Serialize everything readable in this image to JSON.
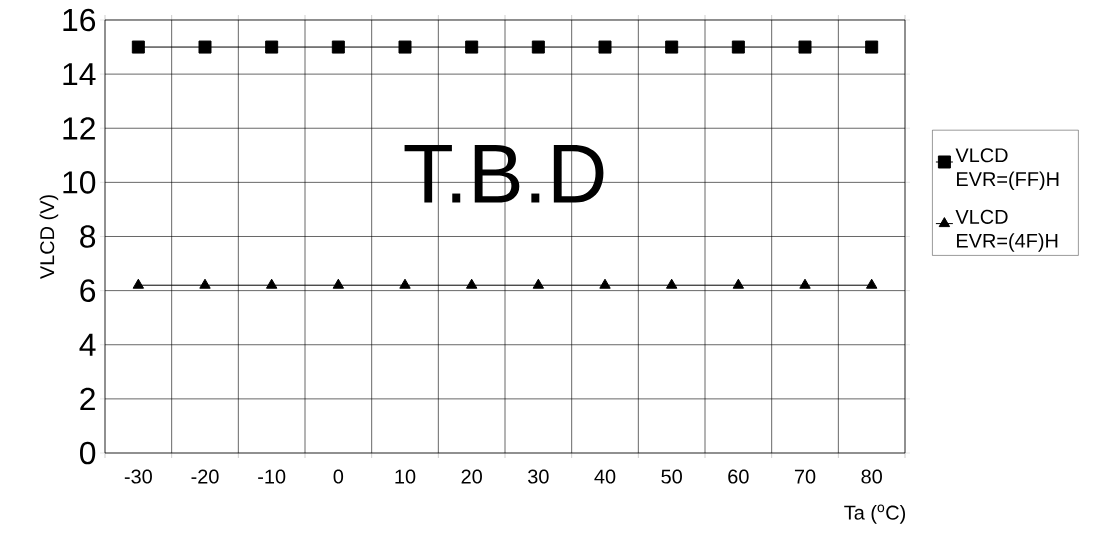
{
  "chart_data": {
    "type": "line",
    "xlabel": "Ta ($^{o}$C)",
    "ylabel": "VLCD (V)",
    "categories": [
      "-30",
      "-20",
      "-10",
      "0",
      "10",
      "20",
      "30",
      "40",
      "50",
      "60",
      "70",
      "80"
    ],
    "series": [
      {
        "name": "VLCD EVR=(FF)H",
        "color": "#000000",
        "marker": "square",
        "values": [
          15,
          15,
          15,
          15,
          15,
          15,
          15,
          15,
          15,
          15,
          15,
          15
        ]
      },
      {
        "name": "VLCD EVR=(4F)H",
        "color": "#000000",
        "marker": "triangle",
        "values": [
          6.2,
          6.2,
          6.2,
          6.2,
          6.2,
          6.2,
          6.2,
          6.2,
          6.2,
          6.2,
          6.2,
          6.2
        ]
      }
    ],
    "ylim": [
      0,
      16
    ],
    "yticks": [
      0,
      2,
      4,
      6,
      8,
      10,
      12,
      14,
      16
    ],
    "grid": true,
    "legend": "right",
    "line_style": "solid",
    "annotations": [
      "T.B.D"
    ]
  }
}
